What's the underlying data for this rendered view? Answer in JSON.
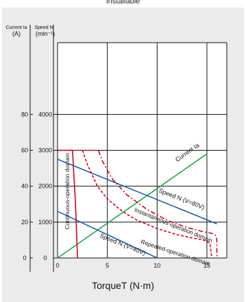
{
  "top_note": "Installable",
  "chart_data": {
    "type": "line",
    "title": "",
    "xlabel": "TorqueT (N·m)",
    "x_ticks": [
      0,
      5,
      10,
      15
    ],
    "xlim": [
      0,
      17
    ],
    "left_axis": {
      "title": "Current Ia",
      "unit": "(A)",
      "ticks": [
        0,
        20,
        40,
        60,
        80
      ],
      "ylim": [
        0,
        120
      ]
    },
    "right_axis": {
      "title": "Speed N",
      "unit": "(min⁻¹)",
      "ticks": [
        0,
        1000,
        2000,
        3000,
        4000
      ],
      "ylim": [
        0,
        6000
      ]
    },
    "series": [
      {
        "name": "Current Ia",
        "axis": "left",
        "color": "#1fa84a",
        "style": "solid",
        "points": [
          [
            0,
            0
          ],
          [
            15,
            58
          ]
        ]
      },
      {
        "name": "Speed N (V=80V)",
        "axis": "right",
        "color": "#1a5fb0",
        "style": "solid",
        "points": [
          [
            0,
            2750
          ],
          [
            16,
            950
          ]
        ]
      },
      {
        "name": "Speed N (V=40V)",
        "axis": "right",
        "color": "#1a5fb0",
        "style": "solid",
        "points": [
          [
            0,
            1300
          ],
          [
            10,
            0
          ]
        ]
      },
      {
        "name": "Continuous-operation domain",
        "axis": "right",
        "color": "#d2001e",
        "style": "solid",
        "points": [
          [
            0,
            3000
          ],
          [
            1.5,
            3000
          ],
          [
            1.8,
            1500
          ],
          [
            2,
            0
          ]
        ]
      },
      {
        "name": "Instantaneous-operation domain",
        "axis": "right",
        "color": "#d2001e",
        "style": "dashdot",
        "points": [
          [
            0,
            3000
          ],
          [
            4.1,
            3000
          ],
          [
            4.5,
            2700
          ],
          [
            5.5,
            2200
          ],
          [
            7,
            1750
          ],
          [
            9,
            1350
          ],
          [
            11,
            1050
          ],
          [
            13,
            850
          ],
          [
            14.5,
            740
          ],
          [
            15.6,
            680
          ],
          [
            15.9,
            620
          ],
          [
            16,
            500
          ],
          [
            16,
            0
          ]
        ]
      },
      {
        "name": "Repeated-operation domain",
        "axis": "right",
        "color": "#d2001e",
        "style": "dashed",
        "points": [
          [
            2.5,
            3000
          ],
          [
            3,
            2600
          ],
          [
            4,
            2000
          ],
          [
            5,
            1650
          ],
          [
            6.5,
            1300
          ],
          [
            8,
            1050
          ],
          [
            10,
            820
          ],
          [
            12,
            650
          ],
          [
            13.5,
            560
          ],
          [
            14.5,
            510
          ],
          [
            15,
            470
          ],
          [
            15.3,
            400
          ],
          [
            15.5,
            0
          ]
        ]
      }
    ]
  }
}
